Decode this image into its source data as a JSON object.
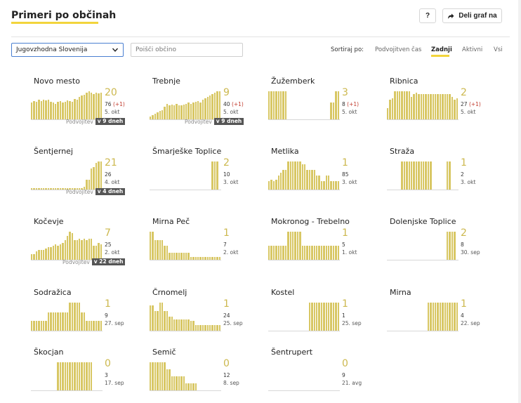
{
  "header": {
    "title": "Primeri po občinah",
    "help_label": "?",
    "share_label": "Deli graf na"
  },
  "filters": {
    "region_selected": "Jugovzhodna Slovenija",
    "search_placeholder": "Poišči občino"
  },
  "sort": {
    "label": "Sortiraj po:",
    "options": [
      "Podvojitven čas",
      "Zadnji",
      "Aktivni",
      "Vsi"
    ],
    "active_index": 1
  },
  "colors": {
    "accent": "#f2d43c",
    "bar": "#d8c764",
    "number": "#ccb84e",
    "increase": "#c0392b",
    "badge": "#555555"
  },
  "cards": [
    {
      "name": "Novo mesto",
      "big": "20",
      "total": "76",
      "delta": "(+1)",
      "date": "5. okt",
      "doubling_label": "Podvojitev",
      "doubling_badge": "v 9 dneh",
      "bars": [
        0.6,
        0.65,
        0.62,
        0.7,
        0.65,
        0.7,
        0.68,
        0.7,
        0.62,
        0.6,
        0.55,
        0.62,
        0.65,
        0.6,
        0.62,
        0.68,
        0.65,
        0.62,
        0.72,
        0.7,
        0.8,
        0.85,
        0.88,
        0.95,
        1.0,
        0.95,
        0.9,
        0.95,
        0.92,
        0.95
      ]
    },
    {
      "name": "Trebnje",
      "big": "9",
      "total": "40",
      "delta": "(+1)",
      "date": "5. okt",
      "doubling_label": "Podvojitev",
      "doubling_badge": "v 9 dneh",
      "bars": [
        0.1,
        0.15,
        0.2,
        0.25,
        0.3,
        0.32,
        0.45,
        0.55,
        0.5,
        0.52,
        0.5,
        0.55,
        0.5,
        0.5,
        0.52,
        0.55,
        0.6,
        0.55,
        0.6,
        0.62,
        0.65,
        0.6,
        0.7,
        0.75,
        0.8,
        0.85,
        0.9,
        0.95,
        1.0,
        1.0
      ]
    },
    {
      "name": "Žužemberk",
      "big": "3",
      "total": "8",
      "delta": "(+1)",
      "date": "5. okt",
      "doubling_label": "",
      "doubling_badge": "",
      "bars": [
        1.0,
        1.0,
        1.0,
        1.0,
        1.0,
        1.0,
        1.0,
        1.0,
        0.0,
        0.0,
        0.0,
        0.0,
        0.0,
        0.0,
        0.0,
        0.0,
        0.0,
        0.0,
        0.0,
        0.0,
        0.0,
        0.0,
        0.0,
        0.0,
        0.0,
        0.0,
        0.6,
        0.6,
        1.0,
        1.0
      ]
    },
    {
      "name": "Ribnica",
      "big": "2",
      "total": "27",
      "delta": "(+1)",
      "date": "5. okt",
      "doubling_label": "",
      "doubling_badge": "",
      "bars": [
        0.4,
        0.7,
        0.75,
        1.0,
        1.0,
        1.0,
        1.0,
        1.0,
        1.0,
        1.0,
        0.8,
        0.9,
        0.95,
        0.9,
        0.9,
        0.9,
        0.9,
        0.9,
        0.9,
        0.9,
        0.9,
        0.9,
        0.9,
        0.9,
        0.9,
        0.9,
        0.9,
        0.8,
        0.7,
        0.75
      ]
    },
    {
      "name": "Šentjernej",
      "big": "21",
      "total": "26",
      "delta": "",
      "date": "4. okt",
      "doubling_label": "Podvojitev",
      "doubling_badge": "v 4 dneh",
      "bars": [
        0.05,
        0.05,
        0.05,
        0.05,
        0.05,
        0.05,
        0.05,
        0.05,
        0.05,
        0.05,
        0.05,
        0.05,
        0.05,
        0.05,
        0.05,
        0.05,
        0.05,
        0.05,
        0.05,
        0.05,
        0.05,
        0.05,
        0.1,
        0.35,
        0.35,
        0.75,
        0.8,
        0.95,
        1.0,
        1.0
      ]
    },
    {
      "name": "Šmarješke Toplice",
      "big": "2",
      "total": "10",
      "delta": "",
      "date": "3. okt",
      "doubling_label": "",
      "doubling_badge": "",
      "bars": [
        0,
        0,
        0,
        0,
        0,
        0,
        0,
        0,
        0,
        0,
        0,
        0,
        0,
        0,
        0,
        0,
        0,
        0,
        0,
        0,
        0,
        0,
        0,
        0,
        0,
        0,
        1.0,
        1.0,
        1.0,
        0
      ]
    },
    {
      "name": "Metlika",
      "big": "1",
      "total": "85",
      "delta": "",
      "date": "3. okt",
      "doubling_label": "",
      "doubling_badge": "",
      "bars": [
        0.3,
        0.35,
        0.3,
        0.35,
        0.5,
        0.6,
        0.7,
        0.7,
        1.0,
        1.0,
        1.0,
        1.0,
        1.0,
        1.0,
        0.9,
        0.9,
        0.7,
        0.7,
        0.7,
        0.7,
        0.5,
        0.5,
        0.3,
        0.3,
        0.5,
        0.5,
        0.3,
        0.3,
        0.3,
        0.3
      ]
    },
    {
      "name": "Straža",
      "big": "1",
      "total": "2",
      "delta": "",
      "date": "3. okt",
      "doubling_label": "",
      "doubling_badge": "",
      "bars": [
        0,
        0,
        0,
        0,
        0,
        0,
        1.0,
        1.0,
        1.0,
        1.0,
        1.0,
        1.0,
        1.0,
        1.0,
        1.0,
        1.0,
        1.0,
        1.0,
        1.0,
        0,
        0,
        0,
        0,
        0,
        0,
        1.0,
        1.0,
        0,
        0,
        0
      ]
    },
    {
      "name": "Kočevje",
      "big": "7",
      "total": "25",
      "delta": "",
      "date": "2. okt",
      "doubling_label": "Podvojitev",
      "doubling_badge": "v 22 dneh",
      "bars": [
        0.2,
        0.2,
        0.3,
        0.35,
        0.35,
        0.35,
        0.4,
        0.45,
        0.45,
        0.5,
        0.55,
        0.5,
        0.55,
        0.6,
        0.7,
        0.85,
        1.0,
        0.95,
        0.7,
        0.7,
        0.75,
        0.7,
        0.75,
        0.7,
        0.75,
        0.75,
        0.5,
        0.5,
        0.6,
        0.55
      ]
    },
    {
      "name": "Mirna Peč",
      "big": "1",
      "total": "7",
      "delta": "",
      "date": "2. okt",
      "doubling_label": "",
      "doubling_badge": "",
      "bars": [
        1.0,
        1.0,
        0.7,
        0.7,
        0.7,
        0.7,
        0.5,
        0.5,
        0.25,
        0.25,
        0.25,
        0.25,
        0.25,
        0.25,
        0.25,
        0.25,
        0.25,
        0.1,
        0.1,
        0.1,
        0.1,
        0.1,
        0.1,
        0.1,
        0.1,
        0.1,
        0.1,
        0.1,
        0.1,
        0.1
      ]
    },
    {
      "name": "Mokronog - Trebelno",
      "big": "1",
      "total": "5",
      "delta": "",
      "date": "1. okt",
      "doubling_label": "",
      "doubling_badge": "",
      "bars": [
        0.5,
        0.5,
        0.5,
        0.5,
        0.5,
        0.5,
        0.5,
        0.5,
        1.0,
        1.0,
        1.0,
        1.0,
        1.0,
        1.0,
        0.5,
        0.5,
        0.5,
        0.5,
        0.5,
        0.5,
        0.5,
        0.5,
        0.5,
        0.5,
        0.5,
        0.5,
        0.5,
        0.5,
        0.5,
        0.5
      ]
    },
    {
      "name": "Dolenjske Toplice",
      "big": "2",
      "total": "8",
      "delta": "",
      "date": "30. sep",
      "doubling_label": "",
      "doubling_badge": "",
      "bars": [
        0,
        0,
        0,
        0,
        0,
        0,
        0,
        0,
        0,
        0,
        0,
        0,
        0,
        0,
        0,
        0,
        0,
        0,
        0,
        0,
        0,
        0,
        0,
        0,
        0,
        1.0,
        1.0,
        1.0,
        1.0,
        0
      ]
    },
    {
      "name": "Sodražica",
      "big": "1",
      "total": "9",
      "delta": "",
      "date": "27. sep",
      "doubling_label": "",
      "doubling_badge": "",
      "bars": [
        0.35,
        0.35,
        0.35,
        0.35,
        0.35,
        0.35,
        0.35,
        0.65,
        0.65,
        0.65,
        0.65,
        0.65,
        0.65,
        0.65,
        0.65,
        0.65,
        1.0,
        1.0,
        1.0,
        1.0,
        1.0,
        0.65,
        0.65,
        0.35,
        0.35,
        0.35,
        0.35,
        0.35,
        0.35,
        0.35
      ]
    },
    {
      "name": "Črnomelj",
      "big": "1",
      "total": "24",
      "delta": "",
      "date": "25. sep",
      "doubling_label": "",
      "doubling_badge": "",
      "bars": [
        0.9,
        0.9,
        0.7,
        0.7,
        1.0,
        1.0,
        0.7,
        0.7,
        0.5,
        0.5,
        0.4,
        0.4,
        0.4,
        0.4,
        0.4,
        0.4,
        0.4,
        0.35,
        0.35,
        0.2,
        0.2,
        0.2,
        0.2,
        0.2,
        0.2,
        0.2,
        0.2,
        0.2,
        0.2,
        0.2
      ]
    },
    {
      "name": "Kostel",
      "big": "1",
      "total": "1",
      "delta": "",
      "date": "25. sep",
      "doubling_label": "",
      "doubling_badge": "",
      "bars": [
        0,
        0,
        0,
        0,
        0,
        0,
        0,
        0,
        0,
        0,
        0,
        0,
        0,
        0,
        0,
        0,
        0,
        1.0,
        1.0,
        1.0,
        1.0,
        1.0,
        1.0,
        1.0,
        1.0,
        1.0,
        1.0,
        1.0,
        1.0,
        1.0
      ]
    },
    {
      "name": "Mirna",
      "big": "1",
      "total": "4",
      "delta": "",
      "date": "22. sep",
      "doubling_label": "",
      "doubling_badge": "",
      "bars": [
        0,
        0,
        0,
        0,
        0,
        0,
        0,
        0,
        0,
        0,
        0,
        0,
        0,
        0,
        0,
        0,
        0,
        1.0,
        1.0,
        1.0,
        1.0,
        1.0,
        1.0,
        1.0,
        1.0,
        1.0,
        1.0,
        1.0,
        1.0,
        1.0
      ]
    },
    {
      "name": "Škocjan",
      "big": "0",
      "total": "3",
      "delta": "",
      "date": "17. sep",
      "doubling_label": "",
      "doubling_badge": "",
      "bars": [
        0,
        0,
        0,
        0,
        0,
        0,
        0,
        0,
        0,
        0,
        0,
        1.0,
        1.0,
        1.0,
        1.0,
        1.0,
        1.0,
        1.0,
        1.0,
        1.0,
        1.0,
        1.0,
        1.0,
        1.0,
        1.0,
        1.0,
        0,
        0,
        0,
        0
      ]
    },
    {
      "name": "Semič",
      "big": "0",
      "total": "12",
      "delta": "",
      "date": "8. sep",
      "doubling_label": "",
      "doubling_badge": "",
      "bars": [
        1.0,
        1.0,
        1.0,
        1.0,
        1.0,
        1.0,
        1.0,
        0.75,
        0.75,
        0.5,
        0.5,
        0.5,
        0.5,
        0.5,
        0.5,
        0.25,
        0.25,
        0.25,
        0.25,
        0.25,
        0,
        0,
        0,
        0,
        0,
        0,
        0,
        0,
        0,
        0
      ]
    },
    {
      "name": "Šentrupert",
      "big": "0",
      "total": "9",
      "delta": "",
      "date": "21. avg",
      "doubling_label": "",
      "doubling_badge": "",
      "bars": [
        0,
        0,
        0,
        0,
        0,
        0,
        0,
        0,
        0,
        0,
        0,
        0,
        0,
        0,
        0,
        0,
        0,
        0,
        0,
        0,
        0,
        0,
        0,
        0,
        0,
        0,
        0,
        0,
        0,
        0
      ]
    }
  ]
}
